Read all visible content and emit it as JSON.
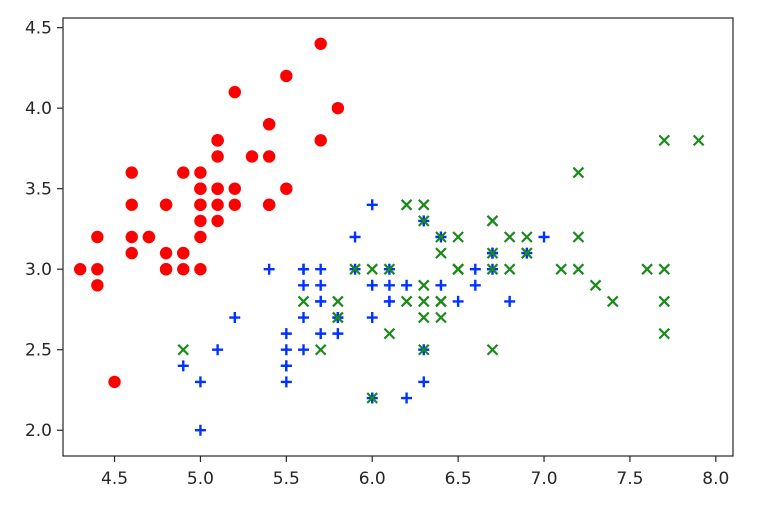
{
  "chart_data": {
    "type": "scatter",
    "title": "",
    "xlabel": "",
    "ylabel": "",
    "xlim": [
      4.2,
      8.1
    ],
    "ylim": [
      1.84,
      4.56
    ],
    "x_ticks": [
      4.5,
      5.0,
      5.5,
      6.0,
      6.5,
      7.0,
      7.5,
      8.0
    ],
    "x_tick_labels": [
      "4.5",
      "5.0",
      "5.5",
      "6.0",
      "6.5",
      "7.0",
      "7.5",
      "8.0"
    ],
    "y_ticks": [
      2.0,
      2.5,
      3.0,
      3.5,
      4.0,
      4.5
    ],
    "y_tick_labels": [
      "2.0",
      "2.5",
      "3.0",
      "3.5",
      "4.0",
      "4.5"
    ],
    "grid": false,
    "legend": "none",
    "series": [
      {
        "marker": "circle",
        "color": "#ff0000",
        "points": [
          [
            5.1,
            3.5
          ],
          [
            4.9,
            3.0
          ],
          [
            4.7,
            3.2
          ],
          [
            4.6,
            3.1
          ],
          [
            5.0,
            3.6
          ],
          [
            5.4,
            3.9
          ],
          [
            4.6,
            3.4
          ],
          [
            5.0,
            3.4
          ],
          [
            4.4,
            2.9
          ],
          [
            4.9,
            3.1
          ],
          [
            5.4,
            3.7
          ],
          [
            4.8,
            3.4
          ],
          [
            4.8,
            3.0
          ],
          [
            4.3,
            3.0
          ],
          [
            5.8,
            4.0
          ],
          [
            5.7,
            4.4
          ],
          [
            5.4,
            3.9
          ],
          [
            5.1,
            3.5
          ],
          [
            5.7,
            3.8
          ],
          [
            5.1,
            3.8
          ],
          [
            5.4,
            3.4
          ],
          [
            5.1,
            3.7
          ],
          [
            4.6,
            3.6
          ],
          [
            5.1,
            3.3
          ],
          [
            4.8,
            3.4
          ],
          [
            5.0,
            3.0
          ],
          [
            5.0,
            3.4
          ],
          [
            5.2,
            3.5
          ],
          [
            5.2,
            3.4
          ],
          [
            4.7,
            3.2
          ],
          [
            4.8,
            3.1
          ],
          [
            5.4,
            3.4
          ],
          [
            5.2,
            4.1
          ],
          [
            5.5,
            4.2
          ],
          [
            4.9,
            3.1
          ],
          [
            5.0,
            3.2
          ],
          [
            5.5,
            3.5
          ],
          [
            4.9,
            3.6
          ],
          [
            4.4,
            3.0
          ],
          [
            5.1,
            3.4
          ],
          [
            5.0,
            3.5
          ],
          [
            4.5,
            2.3
          ],
          [
            4.4,
            3.2
          ],
          [
            5.0,
            3.5
          ],
          [
            5.1,
            3.8
          ],
          [
            4.8,
            3.0
          ],
          [
            5.1,
            3.8
          ],
          [
            4.6,
            3.2
          ],
          [
            5.3,
            3.7
          ],
          [
            5.0,
            3.3
          ]
        ]
      },
      {
        "marker": "plus",
        "color": "#0033ff",
        "points": [
          [
            7.0,
            3.2
          ],
          [
            6.4,
            3.2
          ],
          [
            6.9,
            3.1
          ],
          [
            5.5,
            2.3
          ],
          [
            6.5,
            2.8
          ],
          [
            5.7,
            2.8
          ],
          [
            6.3,
            3.3
          ],
          [
            4.9,
            2.4
          ],
          [
            6.6,
            2.9
          ],
          [
            5.2,
            2.7
          ],
          [
            5.0,
            2.0
          ],
          [
            5.9,
            3.0
          ],
          [
            6.0,
            2.2
          ],
          [
            6.1,
            2.9
          ],
          [
            5.6,
            2.9
          ],
          [
            6.7,
            3.1
          ],
          [
            5.6,
            3.0
          ],
          [
            5.8,
            2.7
          ],
          [
            6.2,
            2.2
          ],
          [
            5.6,
            2.5
          ],
          [
            5.9,
            3.2
          ],
          [
            6.1,
            2.8
          ],
          [
            6.3,
            2.5
          ],
          [
            6.1,
            2.8
          ],
          [
            6.4,
            2.9
          ],
          [
            6.6,
            3.0
          ],
          [
            6.8,
            2.8
          ],
          [
            6.7,
            3.0
          ],
          [
            6.0,
            2.9
          ],
          [
            5.7,
            2.6
          ],
          [
            5.5,
            2.4
          ],
          [
            5.5,
            2.4
          ],
          [
            5.8,
            2.7
          ],
          [
            6.0,
            2.7
          ],
          [
            5.4,
            3.0
          ],
          [
            6.0,
            3.4
          ],
          [
            6.7,
            3.1
          ],
          [
            6.3,
            2.3
          ],
          [
            5.6,
            3.0
          ],
          [
            5.5,
            2.5
          ],
          [
            5.5,
            2.6
          ],
          [
            6.1,
            3.0
          ],
          [
            5.8,
            2.6
          ],
          [
            5.0,
            2.3
          ],
          [
            5.6,
            2.7
          ],
          [
            5.7,
            3.0
          ],
          [
            5.7,
            2.9
          ],
          [
            6.2,
            2.9
          ],
          [
            5.1,
            2.5
          ],
          [
            5.7,
            2.8
          ]
        ]
      },
      {
        "marker": "x",
        "color": "#1a8a1a",
        "points": [
          [
            6.3,
            3.3
          ],
          [
            5.8,
            2.7
          ],
          [
            7.1,
            3.0
          ],
          [
            6.3,
            2.9
          ],
          [
            6.5,
            3.0
          ],
          [
            7.6,
            3.0
          ],
          [
            4.9,
            2.5
          ],
          [
            7.3,
            2.9
          ],
          [
            6.7,
            2.5
          ],
          [
            7.2,
            3.6
          ],
          [
            6.5,
            3.2
          ],
          [
            6.4,
            2.7
          ],
          [
            6.8,
            3.0
          ],
          [
            5.7,
            2.5
          ],
          [
            5.8,
            2.8
          ],
          [
            6.4,
            3.2
          ],
          [
            6.5,
            3.0
          ],
          [
            7.7,
            3.8
          ],
          [
            7.7,
            2.6
          ],
          [
            6.0,
            2.2
          ],
          [
            6.9,
            3.2
          ],
          [
            5.6,
            2.8
          ],
          [
            7.7,
            2.8
          ],
          [
            6.3,
            2.7
          ],
          [
            6.7,
            3.3
          ],
          [
            7.2,
            3.2
          ],
          [
            6.2,
            2.8
          ],
          [
            6.1,
            3.0
          ],
          [
            6.4,
            2.8
          ],
          [
            7.2,
            3.0
          ],
          [
            7.4,
            2.8
          ],
          [
            7.9,
            3.8
          ],
          [
            6.4,
            2.8
          ],
          [
            6.3,
            2.8
          ],
          [
            6.1,
            2.6
          ],
          [
            7.7,
            3.0
          ],
          [
            6.3,
            3.4
          ],
          [
            6.4,
            3.1
          ],
          [
            6.0,
            3.0
          ],
          [
            6.9,
            3.1
          ],
          [
            6.7,
            3.1
          ],
          [
            6.9,
            3.1
          ],
          [
            5.8,
            2.7
          ],
          [
            6.8,
            3.2
          ],
          [
            6.7,
            3.3
          ],
          [
            6.7,
            3.0
          ],
          [
            6.3,
            2.5
          ],
          [
            6.5,
            3.0
          ],
          [
            6.2,
            3.4
          ],
          [
            5.9,
            3.0
          ]
        ]
      }
    ]
  }
}
